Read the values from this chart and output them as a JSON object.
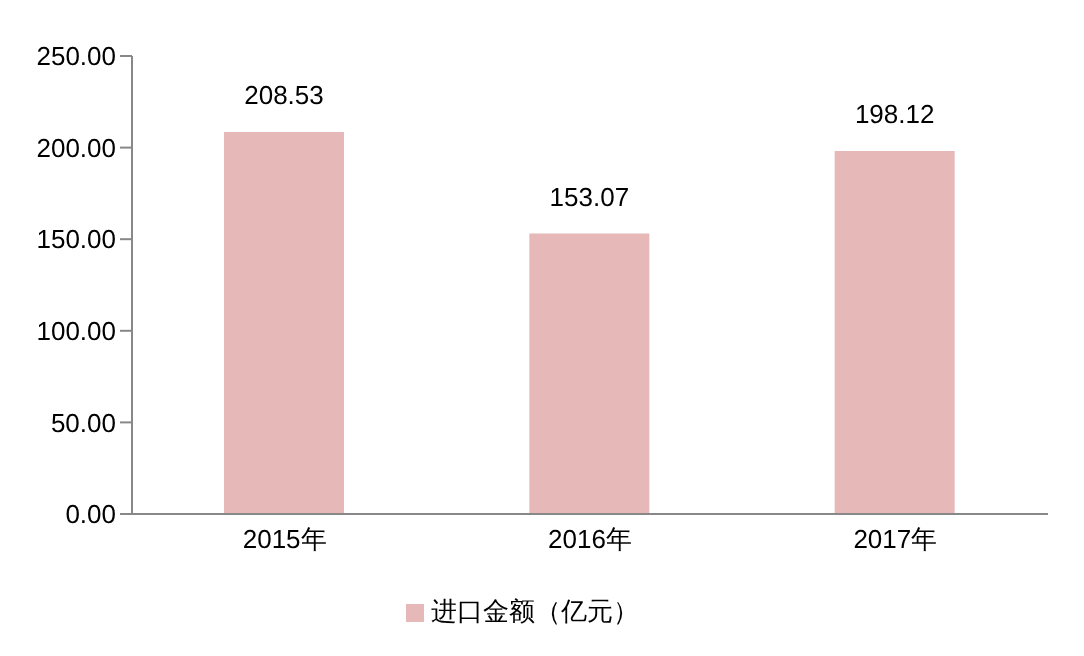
{
  "chart_data": {
    "type": "bar",
    "categories": [
      "2015年",
      "2016年",
      "2017年"
    ],
    "series": [
      {
        "name": "进口金额（亿元）",
        "color": "#e6b9b8",
        "values": [
          208.53,
          153.07,
          198.12
        ]
      }
    ],
    "ylim": [
      0,
      250
    ],
    "yticks": [
      {
        "value": 0,
        "label": "0.00"
      },
      {
        "value": 50,
        "label": "50.00"
      },
      {
        "value": 100,
        "label": "100.00"
      },
      {
        "value": 150,
        "label": "150.00"
      },
      {
        "value": 200,
        "label": "200.00"
      },
      {
        "value": 250,
        "label": "250.00"
      }
    ],
    "data_labels": true,
    "legend": "bottom",
    "grid": false
  }
}
